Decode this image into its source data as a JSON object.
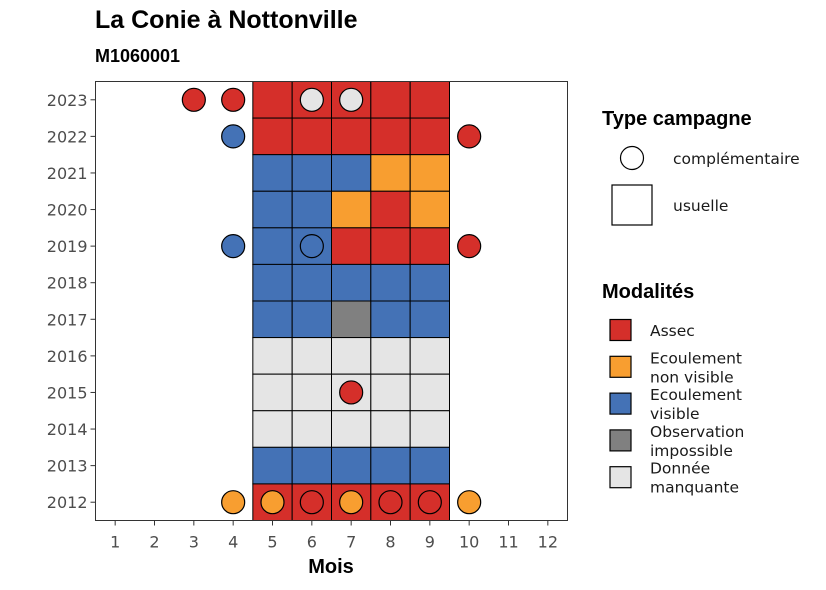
{
  "chart_data": {
    "type": "heatmap",
    "title": "La Conie à Nottonville",
    "subtitle": "M1060001",
    "xlabel": "Mois",
    "ylabel": "",
    "x_ticks": [
      1,
      2,
      3,
      4,
      5,
      6,
      7,
      8,
      9,
      10,
      11,
      12
    ],
    "y_ticks": [
      2012,
      2013,
      2014,
      2015,
      2016,
      2017,
      2018,
      2019,
      2020,
      2021,
      2022,
      2023
    ],
    "xlim": [
      0.5,
      12.5
    ],
    "ylim": [
      2011.5,
      2023.5
    ],
    "grid": false,
    "colors": {
      "Assec": "#D52F2A",
      "Ecoulement non visible": "#F89E30",
      "Ecoulement visible": "#4472B6",
      "Observation impossible": "#808080",
      "Donnée manquante": "#E5E5E5"
    },
    "legend_shape": {
      "title": "Type campagne",
      "entries": [
        {
          "key": "complementaire",
          "label": "complémentaire",
          "shape": "circle"
        },
        {
          "key": "usuelle",
          "label": "usuelle",
          "shape": "square"
        }
      ]
    },
    "legend_fill": {
      "title": "Modalités",
      "entries": [
        {
          "key": "Assec",
          "lines": [
            "Assec"
          ]
        },
        {
          "key": "Ecoulement non visible",
          "lines": [
            "Ecoulement",
            "non visible"
          ]
        },
        {
          "key": "Ecoulement visible",
          "lines": [
            "Ecoulement",
            "visible"
          ]
        },
        {
          "key": "Observation impossible",
          "lines": [
            "Observation",
            "impossible"
          ]
        },
        {
          "key": "Donnée manquante",
          "lines": [
            "Donnée",
            "manquante"
          ]
        }
      ]
    },
    "usuelle": [
      {
        "year": 2023,
        "months": [
          "Assec",
          "Assec",
          "Assec",
          "Assec",
          "Assec"
        ]
      },
      {
        "year": 2022,
        "months": [
          "Assec",
          "Assec",
          "Assec",
          "Assec",
          "Assec"
        ]
      },
      {
        "year": 2021,
        "months": [
          "Ecoulement visible",
          "Ecoulement visible",
          "Ecoulement visible",
          "Ecoulement non visible",
          "Ecoulement non visible"
        ]
      },
      {
        "year": 2020,
        "months": [
          "Ecoulement visible",
          "Ecoulement visible",
          "Ecoulement non visible",
          "Assec",
          "Ecoulement non visible"
        ]
      },
      {
        "year": 2019,
        "months": [
          "Ecoulement visible",
          "Ecoulement visible",
          "Assec",
          "Assec",
          "Assec"
        ]
      },
      {
        "year": 2018,
        "months": [
          "Ecoulement visible",
          "Ecoulement visible",
          "Ecoulement visible",
          "Ecoulement visible",
          "Ecoulement visible"
        ]
      },
      {
        "year": 2017,
        "months": [
          "Ecoulement visible",
          "Ecoulement visible",
          "Observation impossible",
          "Ecoulement visible",
          "Ecoulement visible"
        ]
      },
      {
        "year": 2016,
        "months": [
          "Donnée manquante",
          "Donnée manquante",
          "Donnée manquante",
          "Donnée manquante",
          "Donnée manquante"
        ]
      },
      {
        "year": 2015,
        "months": [
          "Donnée manquante",
          "Donnée manquante",
          "Donnée manquante",
          "Donnée manquante",
          "Donnée manquante"
        ]
      },
      {
        "year": 2014,
        "months": [
          "Donnée manquante",
          "Donnée manquante",
          "Donnée manquante",
          "Donnée manquante",
          "Donnée manquante"
        ]
      },
      {
        "year": 2013,
        "months": [
          "Ecoulement visible",
          "Ecoulement visible",
          "Ecoulement visible",
          "Ecoulement visible",
          "Ecoulement visible"
        ]
      },
      {
        "year": 2012,
        "months": [
          "Assec",
          "Assec",
          "Assec",
          "Assec",
          "Assec"
        ]
      }
    ],
    "usuelle_first_month": 5,
    "complementaire": [
      {
        "year": 2023,
        "month": 3,
        "modalite": "Assec"
      },
      {
        "year": 2023,
        "month": 4,
        "modalite": "Assec"
      },
      {
        "year": 2023,
        "month": 6,
        "modalite": "Donnée manquante"
      },
      {
        "year": 2023,
        "month": 7,
        "modalite": "Donnée manquante"
      },
      {
        "year": 2022,
        "month": 4,
        "modalite": "Ecoulement visible"
      },
      {
        "year": 2022,
        "month": 10,
        "modalite": "Assec"
      },
      {
        "year": 2019,
        "month": 4,
        "modalite": "Ecoulement visible"
      },
      {
        "year": 2019,
        "month": 6,
        "modalite": "Ecoulement visible"
      },
      {
        "year": 2019,
        "month": 10,
        "modalite": "Assec"
      },
      {
        "year": 2015,
        "month": 7,
        "modalite": "Assec"
      },
      {
        "year": 2012,
        "month": 4,
        "modalite": "Ecoulement non visible"
      },
      {
        "year": 2012,
        "month": 5,
        "modalite": "Ecoulement non visible"
      },
      {
        "year": 2012,
        "month": 6,
        "modalite": "Assec"
      },
      {
        "year": 2012,
        "month": 7,
        "modalite": "Ecoulement non visible"
      },
      {
        "year": 2012,
        "month": 8,
        "modalite": "Assec"
      },
      {
        "year": 2012,
        "month": 9,
        "modalite": "Assec"
      },
      {
        "year": 2012,
        "month": 10,
        "modalite": "Ecoulement non visible"
      }
    ]
  }
}
